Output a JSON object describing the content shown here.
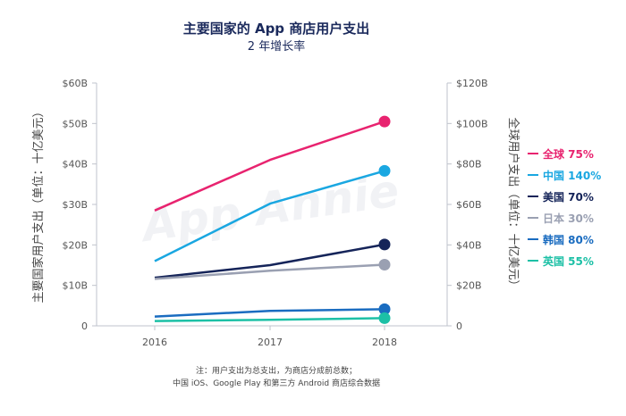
{
  "header": {
    "title": "主要国家的 App 商店用户支出",
    "subtitle": "2 年增长率"
  },
  "watermark": "App Annie",
  "chart_data": {
    "type": "line",
    "title": "主要国家的 App 商店用户支出",
    "subtitle": "2 年增长率",
    "x": [
      "2016",
      "2017",
      "2018"
    ],
    "left_axis": {
      "label": "主要国家用户支出（单位：十亿美元）",
      "ticks": [
        "0",
        "$10B",
        "$20B",
        "$30B",
        "$40B",
        "$50B",
        "$60B"
      ],
      "ylim": [
        0,
        60
      ]
    },
    "right_axis": {
      "label": "全球用户支出（单位：十亿美元）",
      "ticks": [
        "0",
        "$20B",
        "$40B",
        "$60B",
        "$80B",
        "$100B",
        "$120B"
      ],
      "ylim": [
        0,
        120
      ]
    },
    "grid": false,
    "legend_position": "right",
    "series": [
      {
        "name": "全球",
        "growth": "75%",
        "axis": "right",
        "color": "#e8236f",
        "values": [
          57,
          82,
          101
        ]
      },
      {
        "name": "中国",
        "growth": "140%",
        "axis": "left",
        "color": "#1aa7e1",
        "values": [
          16,
          30.2,
          38.3
        ]
      },
      {
        "name": "美国",
        "growth": "70%",
        "axis": "left",
        "color": "#152459",
        "values": [
          11.9,
          15,
          20.1
        ]
      },
      {
        "name": "日本",
        "growth": "30%",
        "axis": "left",
        "color": "#9aa0b2",
        "values": [
          11.6,
          13.6,
          15.1
        ]
      },
      {
        "name": "韩国",
        "growth": "80%",
        "axis": "left",
        "color": "#1a6cc0",
        "values": [
          2.3,
          3.7,
          4.1
        ]
      },
      {
        "name": "英国",
        "growth": "55%",
        "axis": "left",
        "color": "#1cc0a6",
        "values": [
          1.2,
          1.5,
          1.9
        ]
      }
    ]
  },
  "footnote": {
    "line1": "注：用户支出为总支出，为商店分成前总数；",
    "line2": "中国 iOS、Google Play 和第三方 Android 商店综合数据"
  }
}
